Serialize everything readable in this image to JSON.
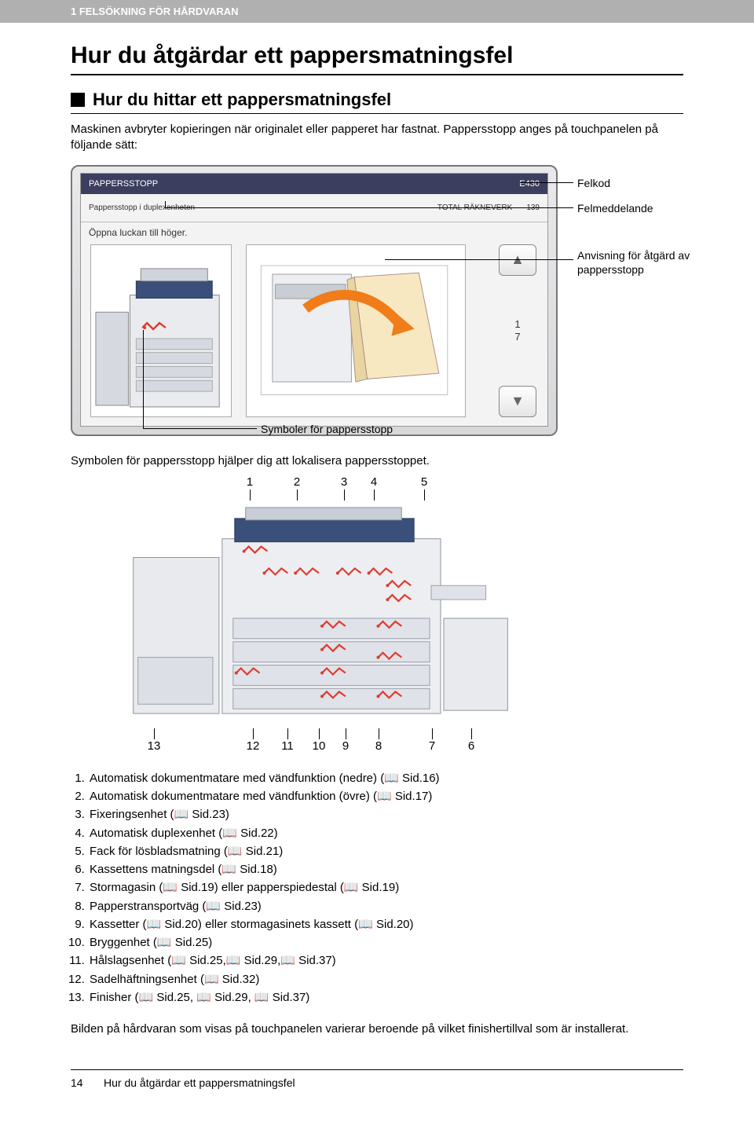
{
  "header": {
    "section_label": "1 FELSÖKNING FÖR HÅRDVARAN"
  },
  "title": "Hur du åtgärdar ett pappersmatningsfel",
  "subsection": {
    "heading": "Hur du hittar ett pappersmatningsfel",
    "para1": "Maskinen avbryter kopieringen när originalet eller papperet har fastnat. Pappersstopp anges på touchpanelen på följande sätt:"
  },
  "touchpanel": {
    "title": "PAPPERSSTOPP",
    "errcode": "E430",
    "status_left": "Pappersstopp i duplexenheten",
    "total_label": "TOTAL RÄKNEVERK",
    "total_value": "139",
    "instruction": "Öppna luckan till höger.",
    "scroll_counter_top": "1",
    "scroll_counter_bot": "7"
  },
  "labels": {
    "felkod": "Felkod",
    "felmeddelande": "Felmeddelande",
    "anvisning": "Anvisning för åtgärd av pappersstopp",
    "symboler": "Symboler för pappersstopp"
  },
  "para_after_panel": "Symbolen för pappersstopp hjälper dig att lokalisera pappersstoppet.",
  "diagram2": {
    "top_numbers": [
      "1",
      "2",
      "3",
      "4",
      "5"
    ],
    "top_x": [
      168,
      228,
      288,
      326,
      390
    ],
    "bot_numbers": [
      "13",
      "12",
      "11",
      "10",
      "9",
      "8",
      "7",
      "6"
    ],
    "bot_x": [
      46,
      172,
      216,
      256,
      290,
      332,
      400,
      450
    ]
  },
  "legend_items": [
    "Automatisk dokumentmatare med vändfunktion (nedre) (📖 Sid.16)",
    "Automatisk dokumentmatare med vändfunktion (övre) (📖 Sid.17)",
    "Fixeringsenhet (📖 Sid.23)",
    "Automatisk duplexenhet (📖 Sid.22)",
    "Fack för lösbladsmatning (📖 Sid.21)",
    "Kassettens matningsdel (📖 Sid.18)",
    "Stormagasin (📖 Sid.19) eller papperspiedestal (📖 Sid.19)",
    "Papperstransportväg (📖 Sid.23)",
    "Kassetter (📖 Sid.20) eller stormagasinets kassett (📖 Sid.20)",
    "Bryggenhet (📖 Sid.25)",
    "Hålslagsenhet (📖 Sid.25,📖 Sid.29,📖 Sid.37)",
    "Sadelhäftningsenhet (📖 Sid.32)",
    "Finisher (📖 Sid.25, 📖 Sid.29, 📖 Sid.37)"
  ],
  "closing_note": "Bilden på hårdvaran som visas på touchpanelen varierar beroende på vilket finishertillval som är installerat.",
  "footer": {
    "page_num": "14",
    "page_title": "Hur du åtgärdar ett pappersmatningsfel"
  },
  "colors": {
    "header_bg": "#b0b0b0",
    "panel_top_bg": "#3b3e5e",
    "jam_red": "#e03a2f",
    "arrow_orange": "#f07c1a",
    "mfp_blue": "#3a4f7a"
  }
}
